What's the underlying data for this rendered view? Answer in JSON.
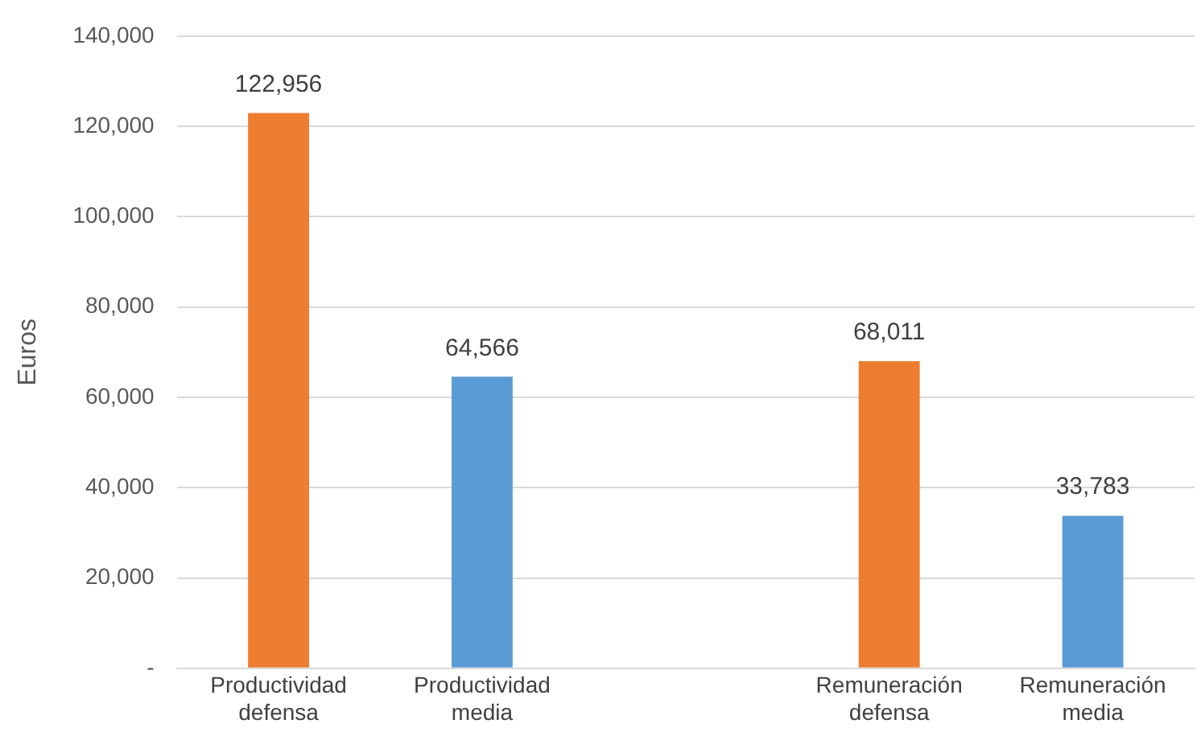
{
  "chart_data": {
    "type": "bar",
    "ylabel": "Euros",
    "categories": [
      "Productividad defensa",
      "Productividad media",
      null,
      "Remuneración defensa",
      "Remuneración media"
    ],
    "values": [
      122956,
      64566,
      null,
      68011,
      33783
    ],
    "colors": [
      "#ed7d31",
      "#5b9bd5",
      null,
      "#ed7d31",
      "#5b9bd5"
    ],
    "value_labels": [
      "122,956",
      "64,566",
      null,
      "68,011",
      "33,783"
    ],
    "ylim": [
      0,
      140000
    ],
    "yticks": [
      {
        "value": 0,
        "label": "-"
      },
      {
        "value": 20000,
        "label": "20,000"
      },
      {
        "value": 40000,
        "label": "40,000"
      },
      {
        "value": 60000,
        "label": "60,000"
      },
      {
        "value": 80000,
        "label": "80,000"
      },
      {
        "value": 100000,
        "label": "100,000"
      },
      {
        "value": 120000,
        "label": "120,000"
      },
      {
        "value": 140000,
        "label": "140,000"
      }
    ],
    "grid": "y",
    "legend": false
  }
}
